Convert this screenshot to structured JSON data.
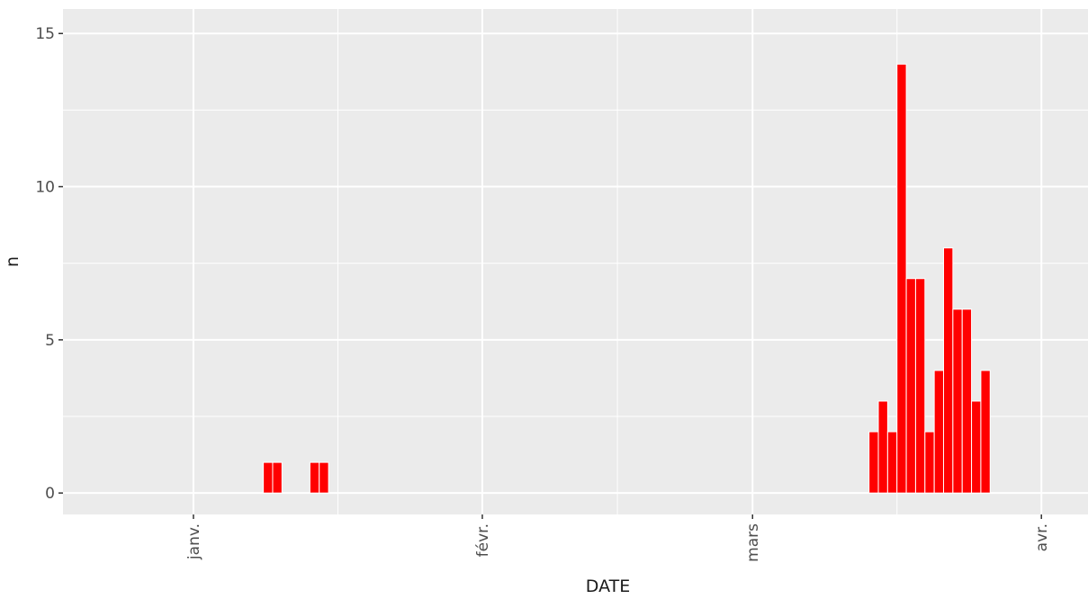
{
  "chart_data": {
    "type": "bar",
    "title": "",
    "xlabel": "DATE",
    "ylabel": "n",
    "ylim": [
      -0.7,
      15.8
    ],
    "xlim": [
      "2020-01-01",
      "2020-04-05"
    ],
    "grid": true,
    "legend": "none",
    "yticks": [
      0,
      5,
      10,
      15
    ],
    "xticks": [
      {
        "date": "2020-01-10",
        "label": "janv."
      },
      {
        "date": "2020-02-10",
        "label": "févr."
      },
      {
        "date": "2020-03-10",
        "label": "mars"
      },
      {
        "date": "2020-04-10",
        "label": "avr."
      }
    ],
    "colors": {
      "panel": "#ebebeb",
      "grid": "#ffffff",
      "bar_fill": "#ff0000",
      "bar_edge": "#ffffff",
      "tick": "#333333"
    },
    "series": [
      {
        "x": [
          "2020-01-18",
          "2020-01-19",
          "2020-01-23",
          "2020-01-24",
          "2020-03-23",
          "2020-03-24",
          "2020-03-25",
          "2020-03-26",
          "2020-03-27",
          "2020-03-28",
          "2020-03-29",
          "2020-03-30",
          "2020-03-31",
          "2020-04-01",
          "2020-04-02",
          "2020-04-03",
          "2020-04-04",
          "2020-04-05"
        ],
        "values": [
          1,
          1,
          1,
          1,
          2,
          3,
          2,
          14,
          7,
          7,
          2,
          4,
          8,
          6,
          6,
          3,
          4,
          0
        ]
      }
    ]
  }
}
